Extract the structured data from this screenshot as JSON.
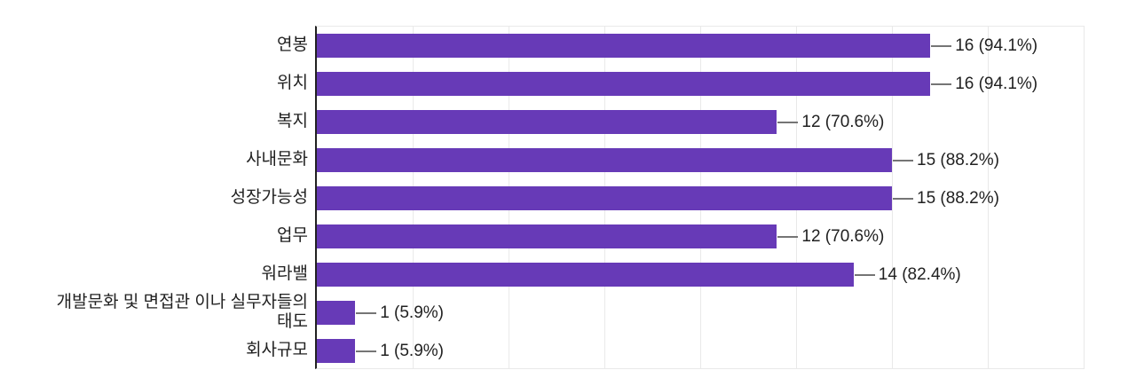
{
  "page": {
    "background_color": "#ffffff"
  },
  "chart_data": {
    "type": "bar",
    "orientation": "horizontal",
    "categories": [
      "연봉",
      "위치",
      "복지",
      "사내문화",
      "성장가능성",
      "업무",
      "워라밸",
      "개발문화 및 면접관 이나 실무자들의 태도",
      "회사규모"
    ],
    "values": [
      16,
      16,
      12,
      15,
      15,
      12,
      14,
      1,
      1
    ],
    "annotations": [
      "16 (94.1%)",
      "16 (94.1%)",
      "12 (70.6%)",
      "15 (88.2%)",
      "15 (88.2%)",
      "12 (70.6%)",
      "14 (82.4%)",
      "1 (5.9%)",
      "1 (5.9%)"
    ],
    "xlim": [
      0,
      20
    ],
    "gridline_step": 2.5,
    "grid": true,
    "x_tick_labels_visible": false,
    "legend_position": "none",
    "bar_color": "#673ab7",
    "axis_color": "#212121",
    "gridline_color": "#e9e9e9",
    "connector_color": "#757575",
    "text_color": "#212121"
  },
  "labels": [
    {
      "line1": "연봉"
    },
    {
      "line1": "위치"
    },
    {
      "line1": "복지"
    },
    {
      "line1": "사내문화"
    },
    {
      "line1": "성장가능성"
    },
    {
      "line1": "업무"
    },
    {
      "line1": "워라밸"
    },
    {
      "line1": "개발문화 및 면접관 이나 실무자들의",
      "line2": "태도"
    },
    {
      "line1": "회사규모"
    }
  ]
}
